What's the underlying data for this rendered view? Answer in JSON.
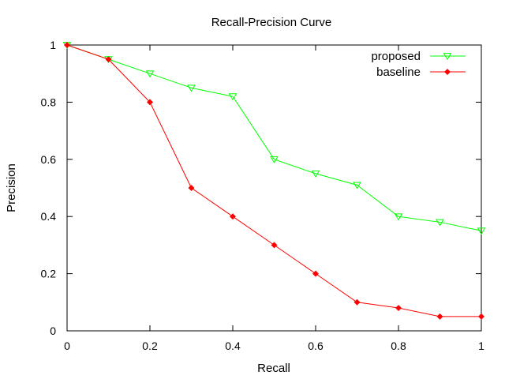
{
  "chart_data": {
    "type": "line",
    "title": "Recall-Precision Curve",
    "xlabel": "Recall",
    "ylabel": "Precision",
    "xlim": [
      0,
      1
    ],
    "ylim": [
      0,
      1
    ],
    "x_ticks": [
      "0",
      "0.2",
      "0.4",
      "0.6",
      "0.8",
      "1"
    ],
    "y_ticks": [
      "0",
      "0.2",
      "0.4",
      "0.6",
      "0.8",
      "1"
    ],
    "grid": false,
    "legend_position": "top-right",
    "x": [
      0,
      0.1,
      0.2,
      0.3,
      0.4,
      0.5,
      0.6,
      0.7,
      0.8,
      0.9,
      1.0
    ],
    "series": [
      {
        "name": "proposed",
        "color": "#00ff00",
        "marker": "triangle-down-open",
        "values": [
          1.0,
          0.95,
          0.9,
          0.85,
          0.82,
          0.6,
          0.55,
          0.51,
          0.4,
          0.38,
          0.35
        ]
      },
      {
        "name": "baseline",
        "color": "#ff0000",
        "marker": "diamond-filled",
        "values": [
          1.0,
          0.95,
          0.8,
          0.5,
          0.4,
          0.3,
          0.2,
          0.1,
          0.08,
          0.05,
          0.05
        ]
      }
    ]
  }
}
